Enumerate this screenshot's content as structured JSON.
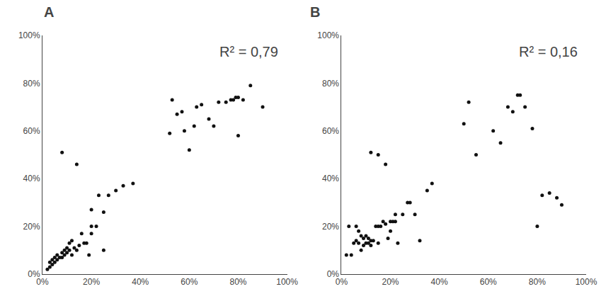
{
  "chart_data": [
    {
      "type": "scatter",
      "title": "A",
      "annotation": "R² = 0,79",
      "x": [
        2,
        3,
        3,
        4,
        4,
        5,
        5,
        6,
        6,
        7,
        8,
        8,
        9,
        9,
        10,
        10,
        11,
        11,
        12,
        12,
        13,
        14,
        15,
        16,
        17,
        18,
        19,
        20,
        20,
        22,
        23,
        25,
        27,
        30,
        33,
        37,
        8,
        14,
        20,
        25,
        52,
        53,
        55,
        57,
        58,
        60,
        62,
        63,
        65,
        68,
        70,
        72,
        75,
        77,
        78,
        79,
        80,
        80,
        82,
        85,
        90
      ],
      "values": [
        2,
        3,
        5,
        4,
        6,
        5,
        7,
        6,
        8,
        7,
        7,
        9,
        8,
        10,
        9,
        11,
        10,
        13,
        8,
        14,
        11,
        10,
        12,
        17,
        13,
        13,
        8,
        17,
        20,
        20,
        33,
        26,
        33,
        35,
        37,
        38,
        51,
        46,
        27,
        10,
        59,
        73,
        67,
        68,
        60,
        52,
        62,
        70,
        71,
        65,
        62,
        72,
        72,
        73,
        73,
        74,
        58,
        74,
        73,
        79,
        70
      ],
      "color": "#111111",
      "xlim": [
        0,
        100
      ],
      "ylim": [
        0,
        100
      ],
      "xticks": [
        {
          "value": 0,
          "label": "0%"
        },
        {
          "value": 20,
          "label": "20%"
        },
        {
          "value": 40,
          "label": "40%"
        },
        {
          "value": 60,
          "label": "60%"
        },
        {
          "value": 80,
          "label": "80%"
        },
        {
          "value": 100,
          "label": "100%"
        }
      ],
      "yticks": [
        {
          "value": 0,
          "label": "0%"
        },
        {
          "value": 20,
          "label": "20%"
        },
        {
          "value": 40,
          "label": "40%"
        },
        {
          "value": 60,
          "label": "60%"
        },
        {
          "value": 80,
          "label": "80%"
        },
        {
          "value": 100,
          "label": "100%"
        }
      ],
      "grid": false
    },
    {
      "type": "scatter",
      "title": "B",
      "annotation": "R² = 0,16",
      "x": [
        2,
        3,
        4,
        5,
        6,
        6,
        7,
        7,
        8,
        8,
        9,
        9,
        10,
        10,
        11,
        11,
        12,
        12,
        13,
        14,
        15,
        15,
        16,
        17,
        18,
        19,
        20,
        20,
        21,
        22,
        22,
        23,
        25,
        27,
        28,
        30,
        32,
        35,
        37,
        12,
        15,
        18,
        50,
        52,
        55,
        62,
        65,
        68,
        70,
        72,
        73,
        75,
        78,
        80,
        82,
        85,
        88,
        90
      ],
      "values": [
        8,
        20,
        8,
        13,
        14,
        20,
        13,
        18,
        10,
        16,
        12,
        15,
        13,
        16,
        13,
        15,
        12,
        14,
        14,
        20,
        13,
        20,
        20,
        22,
        21,
        15,
        18,
        22,
        22,
        22,
        25,
        13,
        25,
        30,
        30,
        25,
        14,
        35,
        38,
        51,
        50,
        46,
        63,
        72,
        50,
        60,
        55,
        70,
        68,
        75,
        75,
        70,
        61,
        20,
        33,
        34,
        32,
        29
      ],
      "color": "#111111",
      "xlim": [
        0,
        100
      ],
      "ylim": [
        0,
        100
      ],
      "xticks": [
        {
          "value": 0,
          "label": "0%"
        },
        {
          "value": 20,
          "label": "20%"
        },
        {
          "value": 40,
          "label": "40%"
        },
        {
          "value": 60,
          "label": "60%"
        },
        {
          "value": 80,
          "label": "80%"
        },
        {
          "value": 100,
          "label": "100%"
        }
      ],
      "yticks": [
        {
          "value": 0,
          "label": "0%"
        },
        {
          "value": 20,
          "label": "20%"
        },
        {
          "value": 40,
          "label": "40%"
        },
        {
          "value": 60,
          "label": "60%"
        },
        {
          "value": 80,
          "label": "80%"
        },
        {
          "value": 100,
          "label": "100%"
        }
      ],
      "grid": false
    }
  ]
}
